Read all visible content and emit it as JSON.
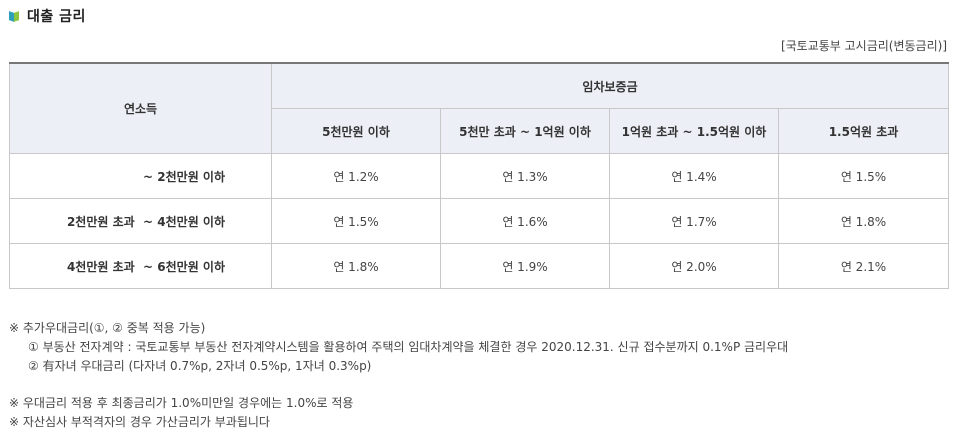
{
  "title": "대출 금리",
  "source_note": "[국토교통부 고시금리(변동금리)]",
  "table": {
    "row_header": "연소득",
    "group_header": "임차보증금",
    "columns": [
      "5천만원 이하",
      "5천만 초과 ~ 1억원 이하",
      "1억원 초과 ~ 1.5억원 이하",
      "1.5억원 초과"
    ],
    "rows": [
      {
        "label": "~ 2천만원 이하",
        "values": [
          "연 1.2%",
          "연 1.3%",
          "연 1.4%",
          "연 1.5%"
        ]
      },
      {
        "label": "2천만원 초과  ~ 4천만원 이하",
        "values": [
          "연 1.5%",
          "연 1.6%",
          "연 1.7%",
          "연 1.8%"
        ]
      },
      {
        "label": "4천만원 초과  ~ 6천만원 이하",
        "values": [
          "연 1.8%",
          "연 1.9%",
          "연 2.0%",
          "연 2.1%"
        ]
      }
    ]
  },
  "notes": {
    "extra_title": "※ 추가우대금리(①, ② 중복 적용 가능)",
    "extra_items": [
      "① 부동산 전자계약 : 국토교통부 부동산 전자계약시스템을 활용하여 주택의 임대차계약을 체결한 경우 2020.12.31. 신규 접수분까지 0.1%P 금리우대",
      "② 有자녀 우대금리 (다자녀 0.7%p, 2자녀 0.5%p, 1자녀 0.3%p)"
    ],
    "min_rate": "※ 우대금리 적용 후 최종금리가 1.0%미만일 경우에는 1.0%로 적용",
    "surcharge": "※ 자산심사 부적격자의 경우 가산금리가 부과됩니다"
  }
}
